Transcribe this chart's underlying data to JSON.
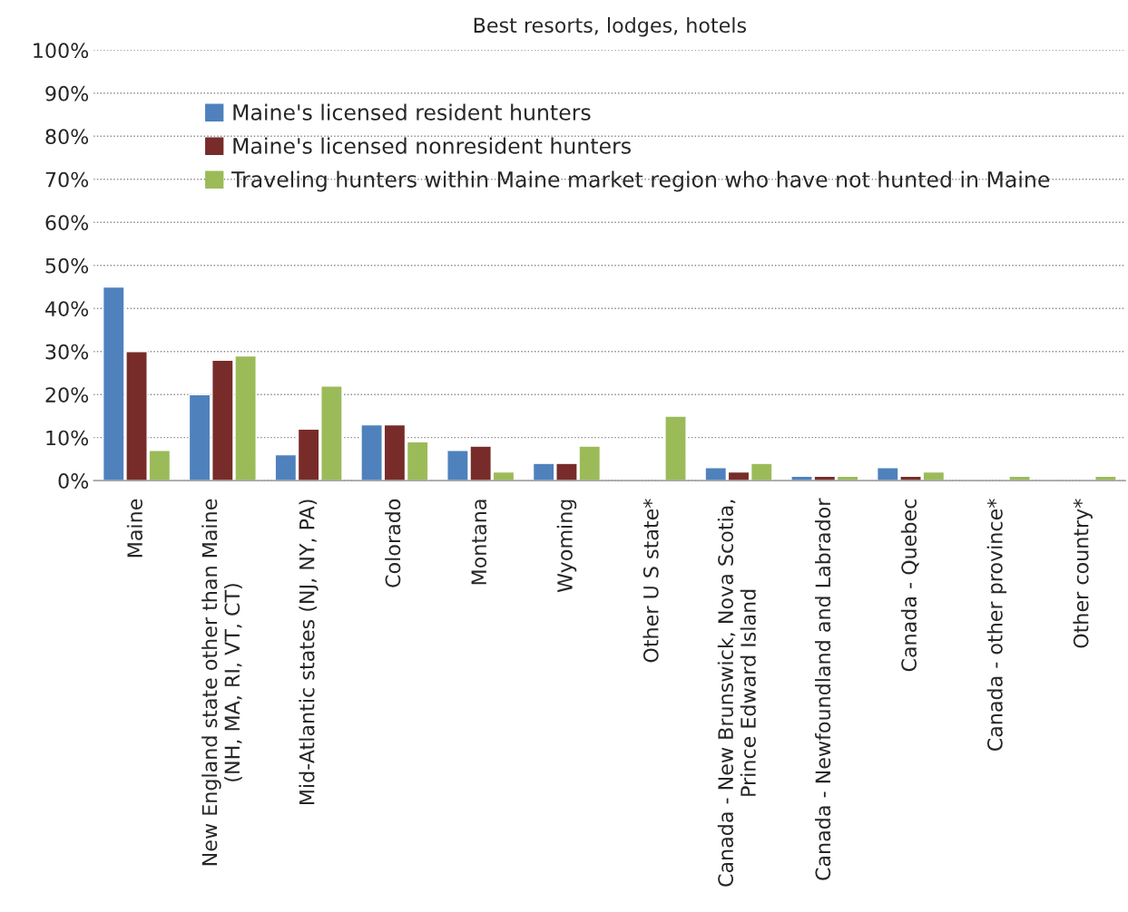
{
  "chart_data": {
    "type": "bar",
    "title": "Best resorts, lodges, hotels",
    "categories": [
      "Maine",
      "New England state other than Maine\n(NH, MA, RI, VT, CT)",
      "Mid-Atlantic states (NJ, NY, PA)",
      "Colorado",
      "Montana",
      "Wyoming",
      "Other U S state*",
      "Canada - New Brunswick, Nova Scotia,\nPrince Edward Island",
      "Canada - Newfoundland and Labrador",
      "Canada - Quebec",
      "Canada - other province*",
      "Other country*"
    ],
    "series": [
      {
        "name": "Maine's licensed resident hunters",
        "color": "#4f81bd",
        "values": [
          45,
          20,
          6,
          13,
          7,
          4,
          null,
          3,
          1,
          3,
          null,
          null
        ]
      },
      {
        "name": "Maine's licensed nonresident hunters",
        "color": "#772c2a",
        "values": [
          30,
          28,
          12,
          13,
          8,
          4,
          null,
          2,
          1,
          1,
          null,
          null
        ]
      },
      {
        "name": "Traveling hunters within Maine market region who have not hunted in Maine",
        "color": "#9bbb59",
        "values": [
          7,
          29,
          22,
          9,
          2,
          8,
          15,
          4,
          1,
          2,
          1,
          1
        ]
      }
    ],
    "ylim": [
      0,
      100
    ],
    "yticks": [
      {
        "value": 0,
        "label": "0%"
      },
      {
        "value": 10,
        "label": "10%"
      },
      {
        "value": 20,
        "label": "20%"
      },
      {
        "value": 30,
        "label": "30%"
      },
      {
        "value": 40,
        "label": "40%"
      },
      {
        "value": 50,
        "label": "50%"
      },
      {
        "value": 60,
        "label": "60%"
      },
      {
        "value": 70,
        "label": "70%"
      },
      {
        "value": 80,
        "label": "80%"
      },
      {
        "value": 90,
        "label": "90%"
      },
      {
        "value": 100,
        "label": "100%"
      }
    ],
    "grid": "y",
    "legend": "top left"
  }
}
